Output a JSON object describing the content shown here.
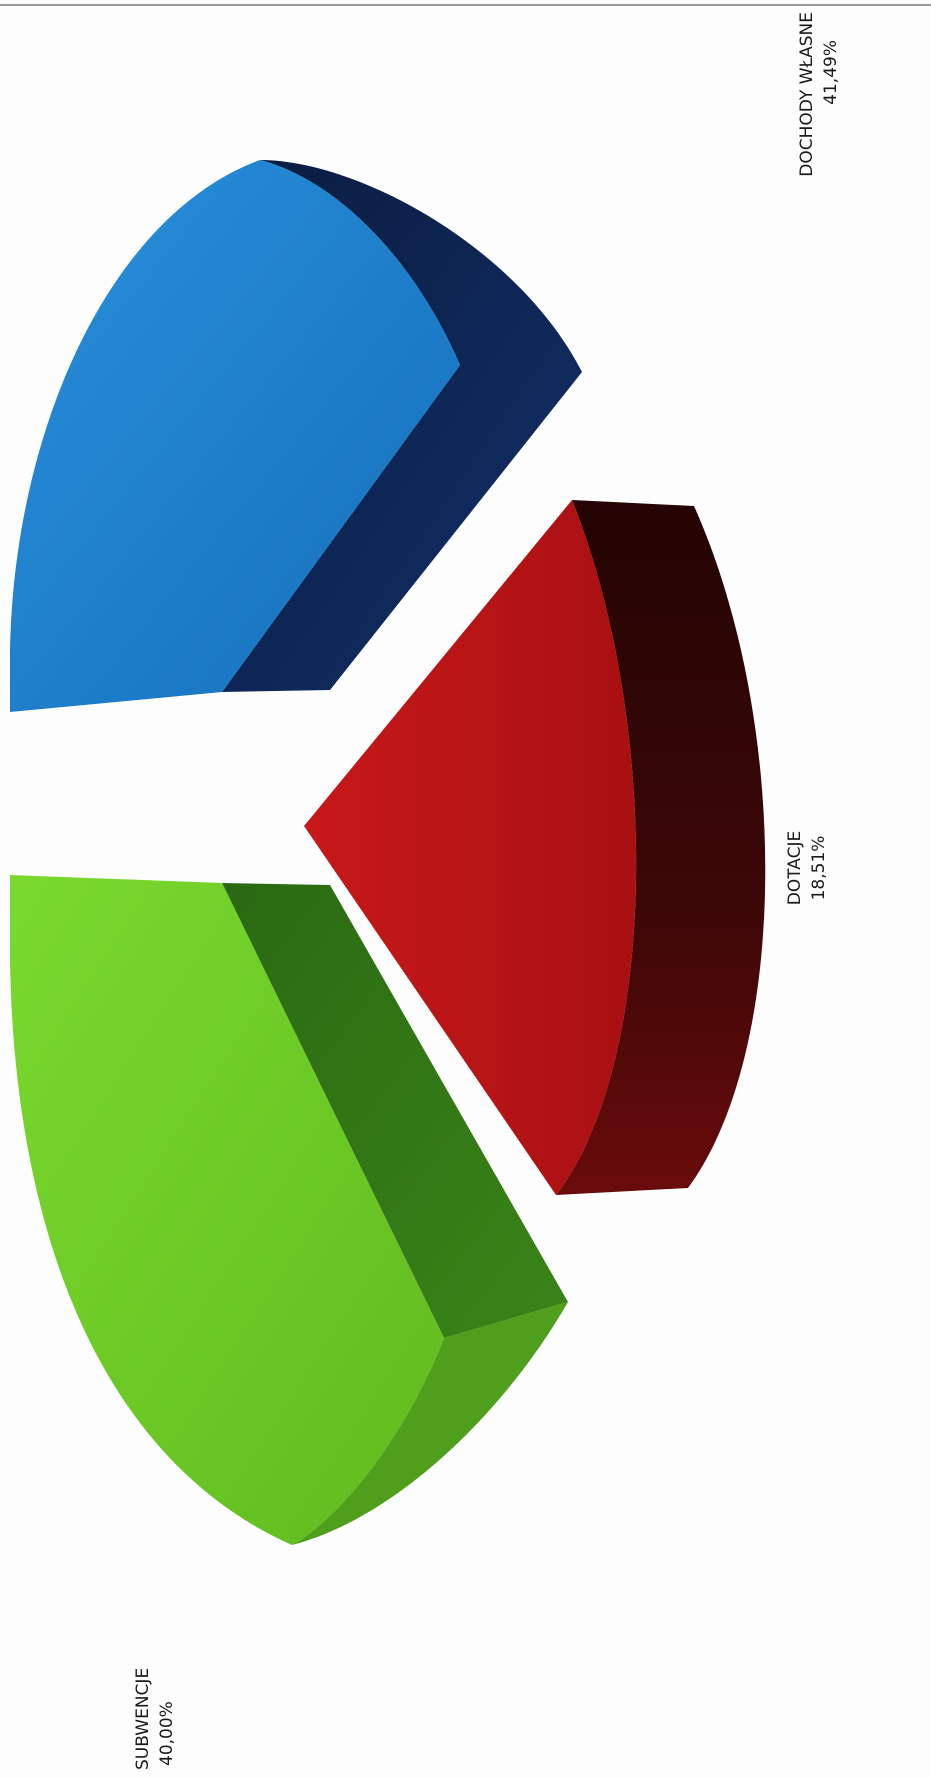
{
  "chart_data": {
    "type": "pie",
    "title": "",
    "orientation": "rotated-90-clockwise",
    "exploded": true,
    "three_d": true,
    "slices": [
      {
        "name": "DOCHODY WŁASNE",
        "value_label": "41,49%",
        "value": 41.49,
        "color_top": "#1c7ed0",
        "color_side": "#0c1f45"
      },
      {
        "name": "DOTACJE",
        "value_label": "18,51%",
        "value": 18.51,
        "color_top": "#b31314",
        "color_side": "#3a0707"
      },
      {
        "name": "SUBWENCJE",
        "value_label": "40,00%",
        "value": 40.0,
        "color_top": "#6ecb23",
        "color_side": "#2f6e14"
      }
    ]
  }
}
